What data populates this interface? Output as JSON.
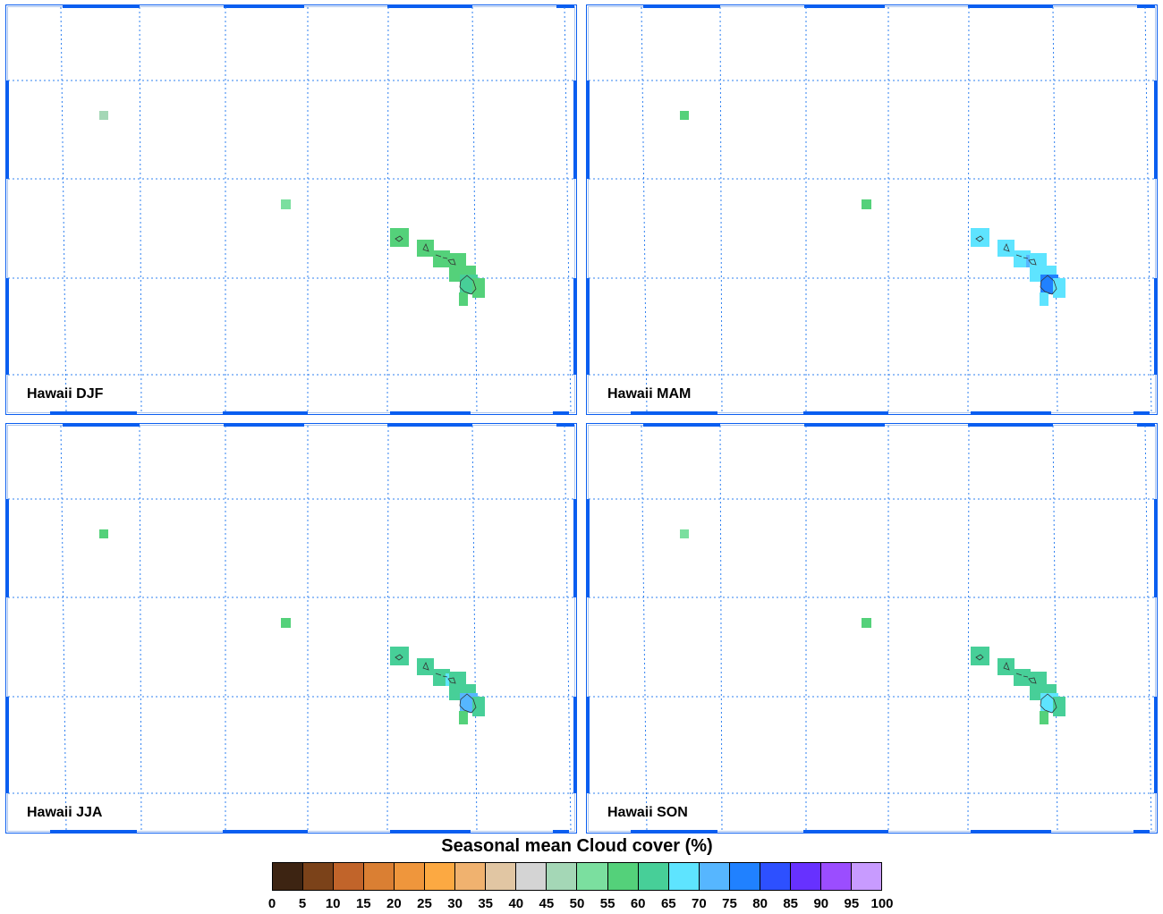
{
  "map": {
    "region": "Hawaii",
    "panels": [
      {
        "label": "Hawaii DJF",
        "season": "DJF",
        "cells": [
          {
            "id": "kure",
            "value": 47
          },
          {
            "id": "nihoa",
            "value": 52
          },
          {
            "id": "kauai",
            "value": 58
          },
          {
            "id": "oahu",
            "value": 58
          },
          {
            "id": "molokai",
            "value": 58
          },
          {
            "id": "maui-w",
            "value": 58
          },
          {
            "id": "maui-e",
            "value": 58
          },
          {
            "id": "kahoolawe",
            "value": 58
          },
          {
            "id": "hawaii-n",
            "value": 58
          },
          {
            "id": "hawaii-c",
            "value": 62
          },
          {
            "id": "hawaii-e",
            "value": 58
          },
          {
            "id": "hawaii-s",
            "value": 58
          }
        ]
      },
      {
        "label": "Hawaii MAM",
        "season": "MAM",
        "cells": [
          {
            "id": "kure",
            "value": 57
          },
          {
            "id": "nihoa",
            "value": 57
          },
          {
            "id": "kauai",
            "value": 68
          },
          {
            "id": "oahu",
            "value": 68
          },
          {
            "id": "molokai",
            "value": 68
          },
          {
            "id": "maui-w",
            "value": 72
          },
          {
            "id": "maui-e",
            "value": 68
          },
          {
            "id": "kahoolawe",
            "value": 68
          },
          {
            "id": "hawaii-n",
            "value": 68
          },
          {
            "id": "hawaii-c",
            "value": 78
          },
          {
            "id": "hawaii-e",
            "value": 68
          },
          {
            "id": "hawaii-s",
            "value": 68
          }
        ]
      },
      {
        "label": "Hawaii JJA",
        "season": "JJA",
        "cells": [
          {
            "id": "kure",
            "value": 57
          },
          {
            "id": "nihoa",
            "value": 57
          },
          {
            "id": "kauai",
            "value": 60
          },
          {
            "id": "oahu",
            "value": 60
          },
          {
            "id": "molokai",
            "value": 60
          },
          {
            "id": "maui-w",
            "value": 68
          },
          {
            "id": "maui-e",
            "value": 62
          },
          {
            "id": "kahoolawe",
            "value": 62
          },
          {
            "id": "hawaii-n",
            "value": 62
          },
          {
            "id": "hawaii-c",
            "value": 72
          },
          {
            "id": "hawaii-e",
            "value": 62
          },
          {
            "id": "hawaii-s",
            "value": 58
          }
        ]
      },
      {
        "label": "Hawaii SON",
        "season": "SON",
        "cells": [
          {
            "id": "kure",
            "value": 52
          },
          {
            "id": "nihoa",
            "value": 57
          },
          {
            "id": "kauai",
            "value": 60
          },
          {
            "id": "oahu",
            "value": 60
          },
          {
            "id": "molokai",
            "value": 60
          },
          {
            "id": "maui-w",
            "value": 60
          },
          {
            "id": "maui-e",
            "value": 62
          },
          {
            "id": "kahoolawe",
            "value": 62
          },
          {
            "id": "hawaii-n",
            "value": 62
          },
          {
            "id": "hawaii-c",
            "value": 68
          },
          {
            "id": "hawaii-e",
            "value": 62
          },
          {
            "id": "hawaii-s",
            "value": 58
          }
        ]
      }
    ]
  },
  "colorbar": {
    "title": "Seasonal mean Cloud cover (%)",
    "ticks": [
      "0",
      "5",
      "10",
      "15",
      "20",
      "25",
      "30",
      "35",
      "40",
      "45",
      "50",
      "55",
      "60",
      "65",
      "70",
      "75",
      "80",
      "85",
      "90",
      "95",
      "100"
    ],
    "colors": [
      "#3d2412",
      "#7b4219",
      "#c1642a",
      "#da7f33",
      "#ef963c",
      "#fca942",
      "#f0b26f",
      "#e1c6a3",
      "#d4d4d4",
      "#a4d7b6",
      "#7bdf9f",
      "#54d17a",
      "#47cf98",
      "#5ee4ff",
      "#56b6ff",
      "#2081ff",
      "#2d50ff",
      "#6731ff",
      "#9b4dff",
      "#c89bff"
    ]
  },
  "style": {
    "grid_color": "#2f80f0",
    "frame_color": "#0a5ef0"
  }
}
